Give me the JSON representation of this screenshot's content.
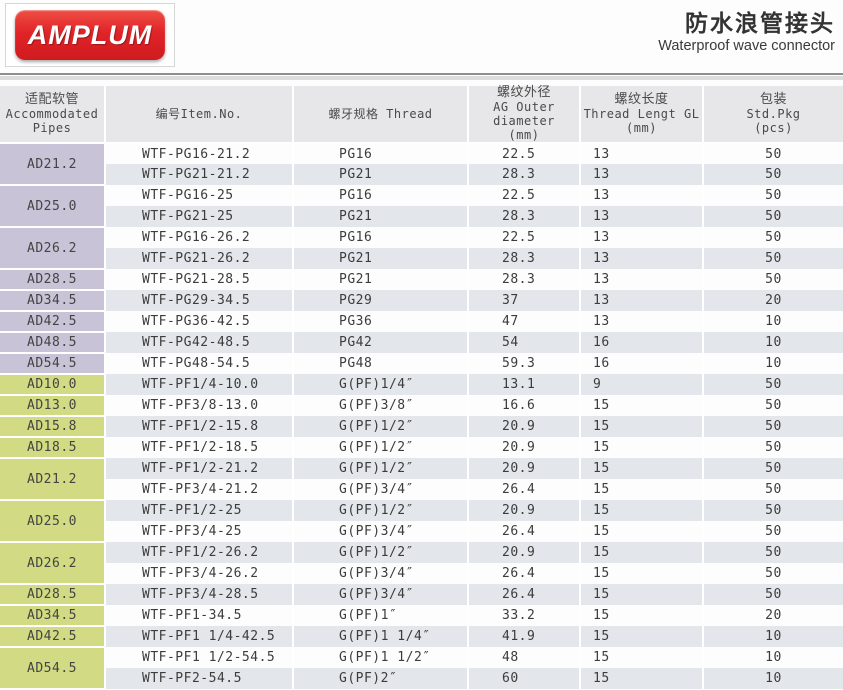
{
  "header": {
    "logo": "AMPLUM",
    "title_zh": "防水浪管接头",
    "title_en": "Waterproof wave connector"
  },
  "colors": {
    "logo_red": "#e02428",
    "pg_pipe_cell": "#c9c3d7",
    "pf_pipe_cell": "#d2db83",
    "header_bg": "#e7e7e9",
    "row_alt": "#e3e6eb"
  },
  "table": {
    "columns": {
      "pipes": {
        "zh": "适配软管",
        "en": "Accommodated",
        "en2": "Pipes"
      },
      "item": {
        "label": "编号Item.No."
      },
      "thread": {
        "label": "螺牙规格  Thread"
      },
      "outer": {
        "zh": "螺纹外径",
        "en": "AG Outer diameter",
        "unit": "(mm)"
      },
      "length": {
        "zh": "螺纹长度",
        "en": "Thread Lengt GL",
        "unit": "(mm)"
      },
      "pkg": {
        "zh": "包装",
        "en": "Std.Pkg",
        "unit": "(pcs)"
      }
    },
    "groups": [
      {
        "pipe": "AD21.2",
        "section": "pg",
        "rows": [
          {
            "item": "WTF-PG16-21.2",
            "thread": "PG16",
            "outer": "22.5",
            "length": "13",
            "pkg": "50"
          },
          {
            "item": "WTF-PG21-21.2",
            "thread": "PG21",
            "outer": "28.3",
            "length": "13",
            "pkg": "50"
          }
        ]
      },
      {
        "pipe": "AD25.0",
        "section": "pg",
        "rows": [
          {
            "item": "WTF-PG16-25",
            "thread": "PG16",
            "outer": "22.5",
            "length": "13",
            "pkg": "50"
          },
          {
            "item": "WTF-PG21-25",
            "thread": "PG21",
            "outer": "28.3",
            "length": "13",
            "pkg": "50"
          }
        ]
      },
      {
        "pipe": "AD26.2",
        "section": "pg",
        "rows": [
          {
            "item": "WTF-PG16-26.2",
            "thread": "PG16",
            "outer": "22.5",
            "length": "13",
            "pkg": "50"
          },
          {
            "item": "WTF-PG21-26.2",
            "thread": "PG21",
            "outer": "28.3",
            "length": "13",
            "pkg": "50"
          }
        ]
      },
      {
        "pipe": "AD28.5",
        "section": "pg",
        "rows": [
          {
            "item": "WTF-PG21-28.5",
            "thread": "PG21",
            "outer": "28.3",
            "length": "13",
            "pkg": "50"
          }
        ]
      },
      {
        "pipe": "AD34.5",
        "section": "pg",
        "rows": [
          {
            "item": "WTF-PG29-34.5",
            "thread": "PG29",
            "outer": "37",
            "length": "13",
            "pkg": "20"
          }
        ]
      },
      {
        "pipe": "AD42.5",
        "section": "pg",
        "rows": [
          {
            "item": "WTF-PG36-42.5",
            "thread": "PG36",
            "outer": "47",
            "length": "13",
            "pkg": "10"
          }
        ]
      },
      {
        "pipe": "AD48.5",
        "section": "pg",
        "rows": [
          {
            "item": "WTF-PG42-48.5",
            "thread": "PG42",
            "outer": "54",
            "length": "16",
            "pkg": "10"
          }
        ]
      },
      {
        "pipe": "AD54.5",
        "section": "pg",
        "rows": [
          {
            "item": "WTF-PG48-54.5",
            "thread": "PG48",
            "outer": "59.3",
            "length": "16",
            "pkg": "10"
          }
        ]
      },
      {
        "pipe": "AD10.0",
        "section": "pf",
        "rows": [
          {
            "item": "WTF-PF1/4-10.0",
            "thread": "G(PF)1/4″",
            "outer": "13.1",
            "length": "9",
            "pkg": "50"
          }
        ]
      },
      {
        "pipe": "AD13.0",
        "section": "pf",
        "rows": [
          {
            "item": "WTF-PF3/8-13.0",
            "thread": "G(PF)3/8″",
            "outer": "16.6",
            "length": "15",
            "pkg": "50"
          }
        ]
      },
      {
        "pipe": "AD15.8",
        "section": "pf",
        "rows": [
          {
            "item": "WTF-PF1/2-15.8",
            "thread": "G(PF)1/2″",
            "outer": "20.9",
            "length": "15",
            "pkg": "50"
          }
        ]
      },
      {
        "pipe": "AD18.5",
        "section": "pf",
        "rows": [
          {
            "item": "WTF-PF1/2-18.5",
            "thread": "G(PF)1/2″",
            "outer": "20.9",
            "length": "15",
            "pkg": "50"
          }
        ]
      },
      {
        "pipe": "AD21.2",
        "section": "pf",
        "rows": [
          {
            "item": "WTF-PF1/2-21.2",
            "thread": "G(PF)1/2″",
            "outer": "20.9",
            "length": "15",
            "pkg": "50"
          },
          {
            "item": "WTF-PF3/4-21.2",
            "thread": "G(PF)3/4″",
            "outer": "26.4",
            "length": "15",
            "pkg": "50"
          }
        ]
      },
      {
        "pipe": "AD25.0",
        "section": "pf",
        "rows": [
          {
            "item": "WTF-PF1/2-25",
            "thread": "G(PF)1/2″",
            "outer": "20.9",
            "length": "15",
            "pkg": "50"
          },
          {
            "item": "WTF-PF3/4-25",
            "thread": "G(PF)3/4″",
            "outer": "26.4",
            "length": "15",
            "pkg": "50"
          }
        ]
      },
      {
        "pipe": "AD26.2",
        "section": "pf",
        "rows": [
          {
            "item": "WTF-PF1/2-26.2",
            "thread": "G(PF)1/2″",
            "outer": "20.9",
            "length": "15",
            "pkg": "50"
          },
          {
            "item": "WTF-PF3/4-26.2",
            "thread": "G(PF)3/4″",
            "outer": "26.4",
            "length": "15",
            "pkg": "50"
          }
        ]
      },
      {
        "pipe": "AD28.5",
        "section": "pf",
        "rows": [
          {
            "item": "WTF-PF3/4-28.5",
            "thread": "G(PF)3/4″",
            "outer": "26.4",
            "length": "15",
            "pkg": "50"
          }
        ]
      },
      {
        "pipe": "AD34.5",
        "section": "pf",
        "rows": [
          {
            "item": "WTF-PF1-34.5",
            "thread": "G(PF)1″",
            "outer": "33.2",
            "length": "15",
            "pkg": "20"
          }
        ]
      },
      {
        "pipe": "AD42.5",
        "section": "pf",
        "rows": [
          {
            "item": "WTF-PF1 1/4-42.5",
            "thread": "G(PF)1 1/4″",
            "outer": "41.9",
            "length": "15",
            "pkg": "10"
          }
        ]
      },
      {
        "pipe": "AD54.5",
        "section": "pf",
        "rows": [
          {
            "item": "WTF-PF1 1/2-54.5",
            "thread": "G(PF)1 1/2″",
            "outer": "48",
            "length": "15",
            "pkg": "10"
          },
          {
            "item": "WTF-PF2-54.5",
            "thread": "G(PF)2″",
            "outer": "60",
            "length": "15",
            "pkg": "10"
          }
        ]
      }
    ]
  }
}
